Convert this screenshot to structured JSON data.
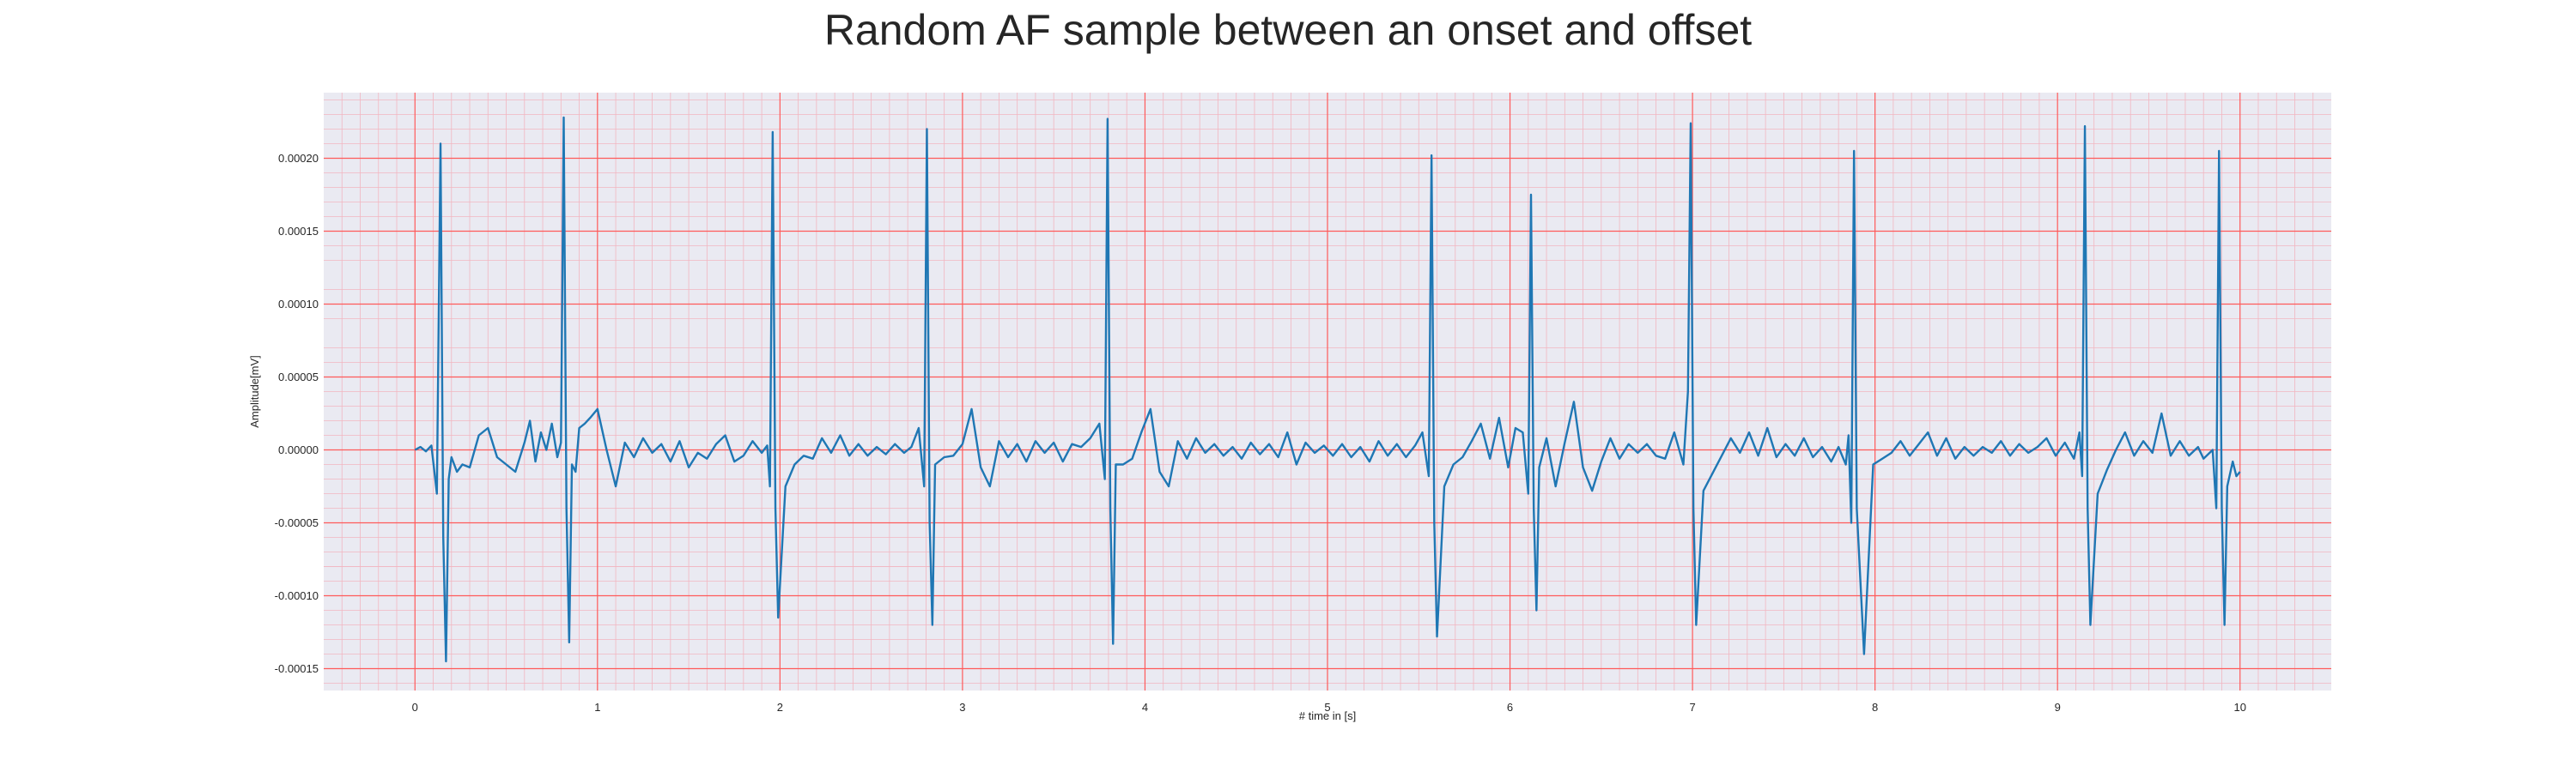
{
  "chart_data": {
    "type": "line",
    "title": "Random AF sample between an onset and offset",
    "xlabel": "# time in [s]",
    "ylabel": "Amplitude[mV]",
    "xlim": [
      -0.5,
      10.5
    ],
    "ylim": [
      -0.000165,
      0.000245
    ],
    "x_ticks": [
      0,
      1,
      2,
      3,
      4,
      5,
      6,
      7,
      8,
      9,
      10
    ],
    "x_tick_labels": [
      "0",
      "1",
      "2",
      "3",
      "4",
      "5",
      "6",
      "7",
      "8",
      "9",
      "10"
    ],
    "y_ticks": [
      -0.00015,
      -0.0001,
      -5e-05,
      0,
      5e-05,
      0.0001,
      0.00015,
      0.0002
    ],
    "y_tick_labels": [
      "-0.00015",
      "-0.00010",
      "-0.00005",
      "0.00000",
      "0.00005",
      "0.00010",
      "0.00015",
      "0.00020"
    ],
    "grid": true,
    "minor_grid": true,
    "colors": {
      "line": "#1f77b4",
      "background": "#eaeaf2",
      "major_grid": "#ff5a5a",
      "minor_grid": "#f2b6c0"
    },
    "series": [
      {
        "x": [
          0.0,
          0.03,
          0.06,
          0.09,
          0.12,
          0.14,
          0.155,
          0.17,
          0.185,
          0.2,
          0.23,
          0.26,
          0.3,
          0.35,
          0.4,
          0.45,
          0.5,
          0.55,
          0.6,
          0.63,
          0.66,
          0.69,
          0.72,
          0.75,
          0.78,
          0.8,
          0.815,
          0.83,
          0.845,
          0.86,
          0.88,
          0.9,
          0.93,
          0.96,
          1.0,
          1.05,
          1.1,
          1.15,
          1.2,
          1.25,
          1.3,
          1.35,
          1.4,
          1.45,
          1.5,
          1.55,
          1.6,
          1.65,
          1.7,
          1.75,
          1.8,
          1.85,
          1.9,
          1.93,
          1.945,
          1.96,
          1.975,
          1.99,
          2.03,
          2.08,
          2.13,
          2.18,
          2.23,
          2.28,
          2.33,
          2.38,
          2.43,
          2.48,
          2.53,
          2.58,
          2.63,
          2.68,
          2.72,
          2.76,
          2.79,
          2.805,
          2.82,
          2.835,
          2.85,
          2.9,
          2.95,
          3.0,
          3.05,
          3.1,
          3.15,
          3.2,
          3.25,
          3.3,
          3.35,
          3.4,
          3.45,
          3.5,
          3.55,
          3.6,
          3.65,
          3.7,
          3.75,
          3.78,
          3.795,
          3.81,
          3.825,
          3.84,
          3.88,
          3.93,
          3.98,
          4.03,
          4.08,
          4.13,
          4.18,
          4.23,
          4.28,
          4.33,
          4.38,
          4.43,
          4.48,
          4.53,
          4.58,
          4.63,
          4.68,
          4.73,
          4.78,
          4.83,
          4.88,
          4.93,
          4.98,
          5.03,
          5.08,
          5.13,
          5.18,
          5.23,
          5.28,
          5.33,
          5.38,
          5.43,
          5.48,
          5.52,
          5.555,
          5.57,
          5.585,
          5.6,
          5.64,
          5.69,
          5.74,
          5.79,
          5.84,
          5.89,
          5.94,
          5.99,
          6.03,
          6.07,
          6.1,
          6.115,
          6.13,
          6.145,
          6.16,
          6.2,
          6.25,
          6.3,
          6.35,
          6.4,
          6.45,
          6.5,
          6.55,
          6.6,
          6.65,
          6.7,
          6.75,
          6.8,
          6.85,
          6.9,
          6.95,
          6.975,
          6.99,
          7.005,
          7.02,
          7.06,
          7.11,
          7.16,
          7.21,
          7.26,
          7.31,
          7.36,
          7.41,
          7.46,
          7.51,
          7.56,
          7.61,
          7.66,
          7.71,
          7.76,
          7.8,
          7.84,
          7.855,
          7.87,
          7.885,
          7.9,
          7.94,
          7.99,
          8.04,
          8.09,
          8.14,
          8.19,
          8.24,
          8.29,
          8.34,
          8.39,
          8.44,
          8.49,
          8.54,
          8.59,
          8.64,
          8.69,
          8.74,
          8.79,
          8.84,
          8.89,
          8.94,
          8.99,
          9.04,
          9.09,
          9.12,
          9.135,
          9.15,
          9.165,
          9.18,
          9.22,
          9.27,
          9.32,
          9.37,
          9.42,
          9.47,
          9.52,
          9.57,
          9.62,
          9.67,
          9.72,
          9.77,
          9.8,
          9.85,
          9.87,
          9.885,
          9.9,
          9.915,
          9.93,
          9.96,
          9.98,
          10.0
        ],
        "y": [
          0.0,
          2e-06,
          -1e-06,
          3e-06,
          -3e-05,
          0.00021,
          -6e-05,
          -0.000145,
          -2e-05,
          -5e-06,
          -1.5e-05,
          -1e-05,
          -1.2e-05,
          1e-05,
          1.5e-05,
          -5e-06,
          -1e-05,
          -1.5e-05,
          5e-06,
          2e-05,
          -8e-06,
          1.2e-05,
          0.0,
          1.8e-05,
          -5e-06,
          5e-06,
          0.000228,
          -4e-05,
          -0.000132,
          -1e-05,
          -1.5e-05,
          1.5e-05,
          1.8e-05,
          2.2e-05,
          2.8e-05,
          0.0,
          -2.5e-05,
          5e-06,
          -5e-06,
          8e-06,
          -2e-06,
          4e-06,
          -8e-06,
          6e-06,
          -1.2e-05,
          -2e-06,
          -6e-06,
          4e-06,
          1e-05,
          -8e-06,
          -4e-06,
          6e-06,
          -2e-06,
          3e-06,
          -2.5e-05,
          0.000218,
          -4e-05,
          -0.000115,
          -2.5e-05,
          -1e-05,
          -4e-06,
          -6e-06,
          8e-06,
          -2e-06,
          1e-05,
          -4e-06,
          4e-06,
          -4e-06,
          2e-06,
          -3e-06,
          4e-06,
          -2e-06,
          2e-06,
          1.5e-05,
          -2.5e-05,
          0.00022,
          -5e-05,
          -0.00012,
          -1e-05,
          -5e-06,
          -4e-06,
          4e-06,
          2.8e-05,
          -1.2e-05,
          -2.5e-05,
          6e-06,
          -5e-06,
          4e-06,
          -8e-06,
          6e-06,
          -2e-06,
          5e-06,
          -8e-06,
          4e-06,
          2e-06,
          8e-06,
          1.8e-05,
          -2e-05,
          0.000227,
          -4e-05,
          -0.000133,
          -1e-05,
          -1e-05,
          -6e-06,
          1.2e-05,
          2.8e-05,
          -1.5e-05,
          -2.5e-05,
          6e-06,
          -6e-06,
          8e-06,
          -2e-06,
          4e-06,
          -4e-06,
          2e-06,
          -6e-06,
          5e-06,
          -3e-06,
          4e-06,
          -5e-06,
          1.2e-05,
          -1e-05,
          5e-06,
          -2e-06,
          3e-06,
          -4e-06,
          4e-06,
          -5e-06,
          2e-06,
          -8e-06,
          6e-06,
          -4e-06,
          4e-06,
          -5e-06,
          3e-06,
          1.2e-05,
          -1.8e-05,
          0.000202,
          -5e-05,
          -0.000128,
          -2.5e-05,
          -1e-05,
          -5e-06,
          6e-06,
          1.8e-05,
          -6e-06,
          2.2e-05,
          -1.2e-05,
          1.5e-05,
          1.2e-05,
          -3e-05,
          0.000175,
          -4e-05,
          -0.00011,
          -1.2e-05,
          8e-06,
          -2.5e-05,
          5e-06,
          3.3e-05,
          -1.2e-05,
          -2.8e-05,
          -8e-06,
          8e-06,
          -6e-06,
          4e-06,
          -2e-06,
          4e-06,
          -4e-06,
          -6e-06,
          1.2e-05,
          -1e-05,
          4e-05,
          0.000224,
          -4e-05,
          -0.00012,
          -2.8e-05,
          -1.6e-05,
          -4e-06,
          8e-06,
          -2e-06,
          1.2e-05,
          -4e-06,
          1.5e-05,
          -5e-06,
          4e-06,
          -4e-06,
          8e-06,
          -5e-06,
          2e-06,
          -8e-06,
          2e-06,
          -1e-05,
          1e-05,
          -5e-05,
          0.000205,
          -4e-05,
          -0.00014,
          -1e-05,
          -6e-06,
          -2e-06,
          6e-06,
          -4e-06,
          4e-06,
          1.2e-05,
          -4e-06,
          8e-06,
          -6e-06,
          2e-06,
          -4e-06,
          2e-06,
          -2e-06,
          6e-06,
          -4e-06,
          4e-06,
          -2e-06,
          2e-06,
          8e-06,
          -4e-06,
          5e-06,
          -6e-06,
          1.2e-05,
          -1.8e-05,
          0.000222,
          -4e-05,
          -0.00012,
          -3e-05,
          -1.4e-05,
          0.0,
          1.2e-05,
          -4e-06,
          6e-06,
          -2e-06,
          2.5e-05,
          -4e-06,
          6e-06,
          -4e-06,
          2e-06,
          -6e-06,
          0.0,
          -4e-05,
          0.000205,
          -4e-05,
          -0.00012,
          -2.5e-05,
          -8e-06,
          -1.8e-05,
          -1.5e-05
        ]
      }
    ]
  }
}
